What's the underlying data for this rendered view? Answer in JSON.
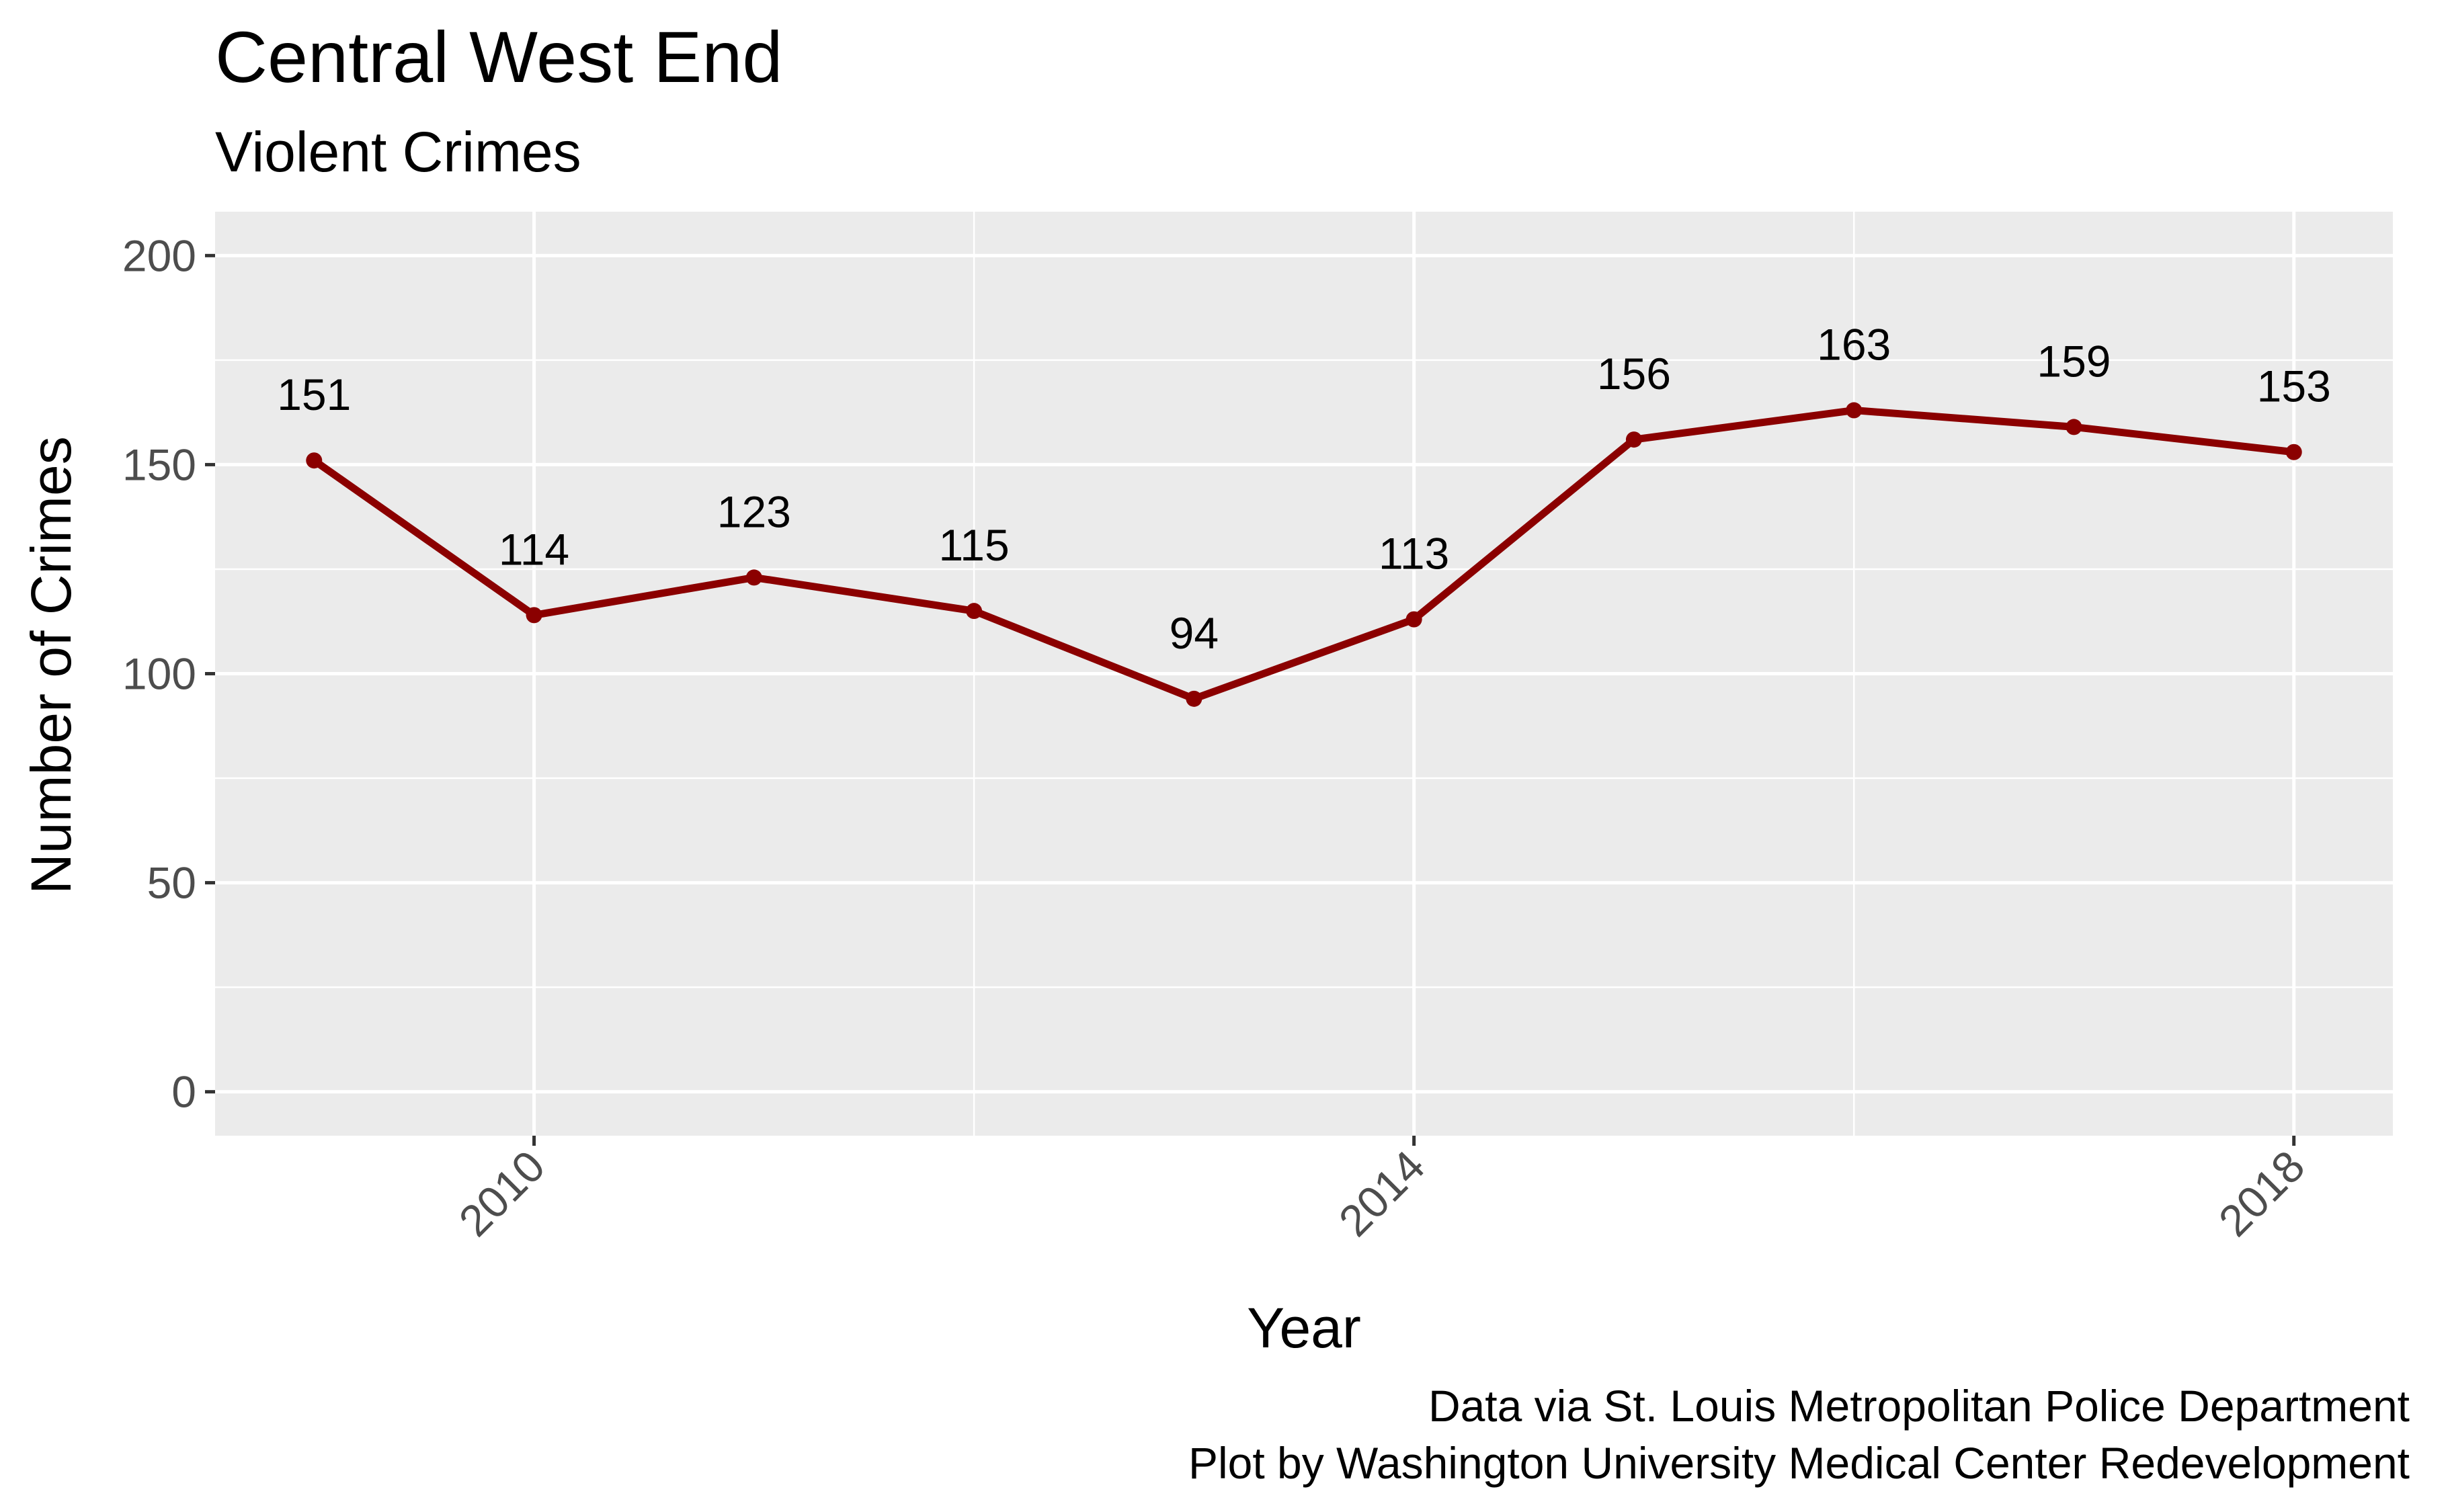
{
  "chart_data": {
    "type": "line",
    "title": "Central West End",
    "subtitle": "Violent Crimes",
    "xlabel": "Year",
    "ylabel": "Number of Crimes",
    "x": [
      2009,
      2010,
      2011,
      2012,
      2013,
      2014,
      2015,
      2016,
      2017,
      2018
    ],
    "series": [
      {
        "values": [
          151,
          114,
          123,
          115,
          94,
          113,
          156,
          163,
          159,
          153
        ],
        "color": "#8b0000"
      }
    ],
    "data_labels": [
      "151",
      "114",
      "123",
      "115",
      "94",
      "113",
      "156",
      "163",
      "159",
      "153"
    ],
    "xlim": [
      2008.55,
      2018.45
    ],
    "ylim": [
      -10.5,
      210.5
    ],
    "x_ticks": [
      2010,
      2014,
      2018
    ],
    "x_tick_labels": [
      "2010",
      "2014",
      "2018"
    ],
    "y_ticks": [
      0,
      50,
      100,
      150,
      200
    ],
    "y_tick_labels": [
      "0",
      "50",
      "100",
      "150",
      "200"
    ],
    "grid": true,
    "legend": "none",
    "caption": [
      "Data via St. Louis Metropolitan Police Department",
      "Plot by Washington University Medical Center Redevelopment"
    ],
    "panel_color": "#ebebeb",
    "grid_color": "#ffffff"
  }
}
